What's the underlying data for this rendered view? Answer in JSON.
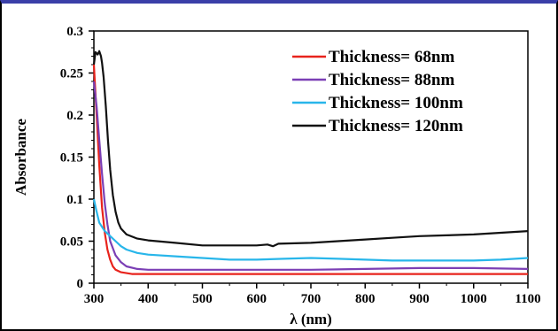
{
  "chart_data": {
    "type": "line",
    "title": "",
    "xlabel": "λ (nm)",
    "ylabel": "Absorbance",
    "xlim": [
      300,
      1100
    ],
    "ylim": [
      0,
      0.3
    ],
    "x_ticks": [
      300,
      400,
      500,
      600,
      700,
      800,
      900,
      1000,
      1100
    ],
    "y_ticks": [
      0,
      0.05,
      0.1,
      0.15,
      0.2,
      0.25,
      0.3
    ],
    "y_tick_labels": [
      "0",
      "0.05",
      "0.1",
      "0.15",
      "0.2",
      "0.25",
      "0.3"
    ],
    "grid": false,
    "legend_position": "top-right",
    "series": [
      {
        "name": "Thickness= 68nm",
        "color": "#e8231c",
        "points": [
          [
            300,
            0.26
          ],
          [
            305,
            0.2
          ],
          [
            310,
            0.14
          ],
          [
            315,
            0.09
          ],
          [
            320,
            0.06
          ],
          [
            325,
            0.04
          ],
          [
            330,
            0.028
          ],
          [
            335,
            0.02
          ],
          [
            340,
            0.016
          ],
          [
            350,
            0.013
          ],
          [
            370,
            0.011
          ],
          [
            400,
            0.011
          ],
          [
            500,
            0.011
          ],
          [
            600,
            0.011
          ],
          [
            700,
            0.011
          ],
          [
            800,
            0.011
          ],
          [
            900,
            0.011
          ],
          [
            1000,
            0.011
          ],
          [
            1100,
            0.011
          ]
        ]
      },
      {
        "name": "Thickness= 88nm",
        "color": "#7b3fb5",
        "points": [
          [
            300,
            0.24
          ],
          [
            305,
            0.21
          ],
          [
            310,
            0.17
          ],
          [
            315,
            0.13
          ],
          [
            320,
            0.095
          ],
          [
            325,
            0.07
          ],
          [
            330,
            0.05
          ],
          [
            340,
            0.033
          ],
          [
            350,
            0.025
          ],
          [
            360,
            0.02
          ],
          [
            380,
            0.017
          ],
          [
            400,
            0.016
          ],
          [
            500,
            0.016
          ],
          [
            600,
            0.016
          ],
          [
            700,
            0.016
          ],
          [
            800,
            0.017
          ],
          [
            900,
            0.018
          ],
          [
            1000,
            0.018
          ],
          [
            1100,
            0.017
          ]
        ]
      },
      {
        "name": "Thickness= 100nm",
        "color": "#28b6ea",
        "points": [
          [
            300,
            0.1
          ],
          [
            305,
            0.085
          ],
          [
            310,
            0.072
          ],
          [
            320,
            0.062
          ],
          [
            330,
            0.056
          ],
          [
            340,
            0.05
          ],
          [
            350,
            0.044
          ],
          [
            360,
            0.04
          ],
          [
            380,
            0.036
          ],
          [
            400,
            0.034
          ],
          [
            450,
            0.032
          ],
          [
            500,
            0.03
          ],
          [
            550,
            0.028
          ],
          [
            600,
            0.028
          ],
          [
            650,
            0.029
          ],
          [
            700,
            0.03
          ],
          [
            750,
            0.029
          ],
          [
            800,
            0.028
          ],
          [
            850,
            0.027
          ],
          [
            900,
            0.027
          ],
          [
            950,
            0.027
          ],
          [
            1000,
            0.027
          ],
          [
            1050,
            0.028
          ],
          [
            1100,
            0.03
          ]
        ]
      },
      {
        "name": "Thickness= 120nm",
        "color": "#111111",
        "points": [
          [
            300,
            0.26
          ],
          [
            303,
            0.275
          ],
          [
            307,
            0.272
          ],
          [
            310,
            0.276
          ],
          [
            313,
            0.27
          ],
          [
            315,
            0.262
          ],
          [
            318,
            0.245
          ],
          [
            322,
            0.21
          ],
          [
            326,
            0.17
          ],
          [
            330,
            0.135
          ],
          [
            335,
            0.105
          ],
          [
            340,
            0.085
          ],
          [
            345,
            0.072
          ],
          [
            350,
            0.065
          ],
          [
            360,
            0.058
          ],
          [
            380,
            0.053
          ],
          [
            400,
            0.051
          ],
          [
            450,
            0.048
          ],
          [
            500,
            0.045
          ],
          [
            550,
            0.045
          ],
          [
            600,
            0.045
          ],
          [
            620,
            0.046
          ],
          [
            630,
            0.044
          ],
          [
            640,
            0.047
          ],
          [
            700,
            0.048
          ],
          [
            750,
            0.05
          ],
          [
            800,
            0.052
          ],
          [
            850,
            0.054
          ],
          [
            900,
            0.056
          ],
          [
            950,
            0.057
          ],
          [
            1000,
            0.058
          ],
          [
            1050,
            0.06
          ],
          [
            1100,
            0.062
          ]
        ]
      }
    ]
  }
}
